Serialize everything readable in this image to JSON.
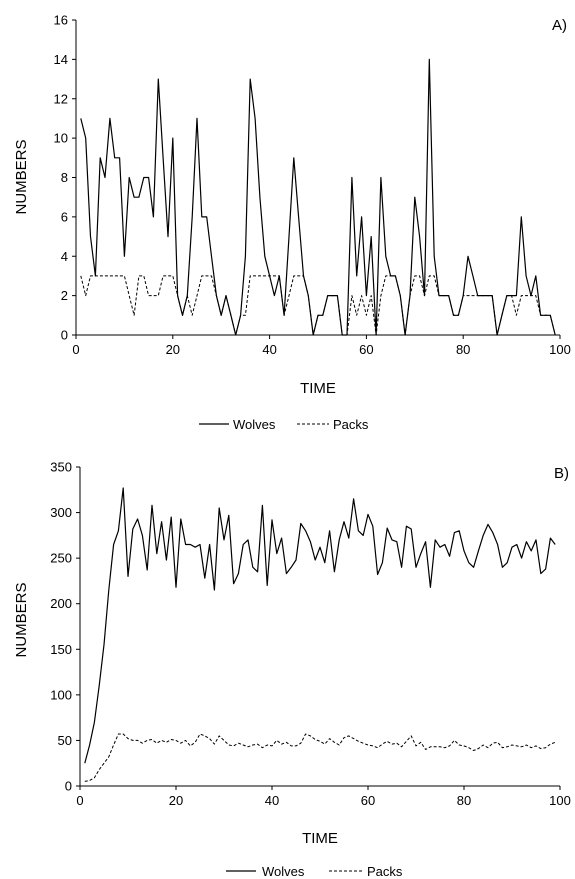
{
  "chart_data": [
    {
      "type": "line",
      "panel_label": "A)",
      "xlabel": "TIME",
      "ylabel": "NUMBERS",
      "xlim": [
        0,
        100
      ],
      "ylim": [
        0,
        16
      ],
      "xticks": [
        0,
        20,
        40,
        60,
        80,
        100
      ],
      "yticks": [
        0,
        2,
        4,
        6,
        8,
        10,
        12,
        14,
        16
      ],
      "grid": false,
      "legend": "bottom",
      "series": [
        {
          "name": "Wolves",
          "style": "solid",
          "x": [
            1,
            2,
            3,
            4,
            5,
            6,
            7,
            8,
            9,
            10,
            11,
            12,
            13,
            14,
            15,
            16,
            17,
            18,
            19,
            20,
            21,
            22,
            23,
            24,
            25,
            26,
            27,
            28,
            29,
            30,
            31,
            32,
            33,
            34,
            35,
            36,
            37,
            38,
            39,
            40,
            41,
            42,
            43,
            44,
            45,
            46,
            47,
            48,
            49,
            50,
            51,
            52,
            53,
            54,
            55,
            56,
            57,
            58,
            59,
            60,
            61,
            62,
            63,
            64,
            65,
            66,
            67,
            68,
            69,
            70,
            71,
            72,
            73,
            74,
            75,
            76,
            77,
            78,
            79,
            80,
            81,
            82,
            83,
            84,
            85,
            86,
            87,
            88,
            89,
            90,
            91,
            92,
            93,
            94,
            95,
            96,
            97,
            98,
            99
          ],
          "values": [
            11,
            10,
            5,
            3,
            9,
            8,
            11,
            9,
            9,
            4,
            8,
            7,
            7,
            8,
            8,
            6,
            13,
            9,
            5,
            10,
            2,
            1,
            2,
            6,
            11,
            6,
            6,
            4,
            2,
            1,
            2,
            1,
            0,
            1,
            4,
            13,
            11,
            7,
            4,
            3,
            2,
            3,
            1,
            5,
            9,
            6,
            3,
            2,
            0,
            1,
            1,
            2,
            2,
            2,
            0,
            0,
            8,
            3,
            6,
            2,
            5,
            0,
            8,
            4,
            3,
            3,
            2,
            0,
            2,
            7,
            5,
            2,
            14,
            4,
            2,
            2,
            2,
            1,
            1,
            2,
            4,
            3,
            2,
            2,
            2,
            2,
            0,
            1,
            2,
            2,
            2,
            6,
            3,
            2,
            3,
            1,
            1,
            1,
            0
          ]
        },
        {
          "name": "Packs",
          "style": "dashed",
          "x": [
            1,
            2,
            3,
            4,
            5,
            6,
            7,
            8,
            9,
            10,
            11,
            12,
            13,
            14,
            15,
            16,
            17,
            18,
            19,
            20,
            21,
            22,
            23,
            24,
            25,
            26,
            27,
            28,
            29,
            30,
            31,
            32,
            33,
            34,
            35,
            36,
            37,
            38,
            39,
            40,
            41,
            42,
            43,
            44,
            45,
            46,
            47,
            48,
            49,
            50,
            51,
            52,
            53,
            54,
            55,
            56,
            57,
            58,
            59,
            60,
            61,
            62,
            63,
            64,
            65,
            66,
            67,
            68,
            69,
            70,
            71,
            72,
            73,
            74,
            75,
            76,
            77,
            78,
            79,
            80,
            81,
            82,
            83,
            84,
            85,
            86,
            87,
            88,
            89,
            90,
            91,
            92,
            93,
            94,
            95,
            96,
            97,
            98,
            99
          ],
          "values": [
            3,
            2,
            3,
            3,
            3,
            3,
            3,
            3,
            3,
            3,
            2,
            1,
            3,
            3,
            2,
            2,
            2,
            3,
            3,
            3,
            2,
            1,
            2,
            1,
            2,
            3,
            3,
            3,
            2,
            1,
            2,
            1,
            0,
            1,
            1,
            3,
            3,
            3,
            3,
            3,
            3,
            3,
            1,
            2,
            3,
            3,
            3,
            2,
            0,
            1,
            1,
            2,
            2,
            2,
            0,
            0,
            2,
            1,
            2,
            1,
            2,
            0,
            2,
            3,
            3,
            3,
            2,
            0,
            2,
            3,
            3,
            2,
            3,
            3,
            2,
            2,
            2,
            1,
            1,
            2,
            2,
            2,
            2,
            2,
            2,
            2,
            0,
            1,
            2,
            2,
            1,
            2,
            2,
            2,
            2,
            1,
            1,
            1,
            0
          ]
        }
      ]
    },
    {
      "type": "line",
      "panel_label": "B)",
      "xlabel": "TIME",
      "ylabel": "NUMBERS",
      "xlim": [
        0,
        100
      ],
      "ylim": [
        0,
        350
      ],
      "xticks": [
        0,
        20,
        40,
        60,
        80,
        100
      ],
      "yticks": [
        0,
        50,
        100,
        150,
        200,
        250,
        300,
        350
      ],
      "grid": false,
      "legend": "bottom",
      "series": [
        {
          "name": "Wolves",
          "style": "solid",
          "x": [
            1,
            2,
            3,
            4,
            5,
            6,
            7,
            8,
            9,
            10,
            11,
            12,
            13,
            14,
            15,
            16,
            17,
            18,
            19,
            20,
            21,
            22,
            23,
            24,
            25,
            26,
            27,
            28,
            29,
            30,
            31,
            32,
            33,
            34,
            35,
            36,
            37,
            38,
            39,
            40,
            41,
            42,
            43,
            44,
            45,
            46,
            47,
            48,
            49,
            50,
            51,
            52,
            53,
            54,
            55,
            56,
            57,
            58,
            59,
            60,
            61,
            62,
            63,
            64,
            65,
            66,
            67,
            68,
            69,
            70,
            71,
            72,
            73,
            74,
            75,
            76,
            77,
            78,
            79,
            80,
            81,
            82,
            83,
            84,
            85,
            86,
            87,
            88,
            89,
            90,
            91,
            92,
            93,
            94,
            95,
            96,
            97,
            98,
            99
          ],
          "values": [
            25,
            45,
            70,
            110,
            155,
            215,
            265,
            280,
            327,
            230,
            282,
            293,
            275,
            237,
            308,
            255,
            290,
            248,
            295,
            218,
            293,
            265,
            265,
            262,
            265,
            228,
            265,
            215,
            305,
            270,
            297,
            222,
            233,
            265,
            270,
            240,
            235,
            308,
            220,
            292,
            255,
            272,
            233,
            240,
            248,
            288,
            280,
            268,
            248,
            262,
            245,
            280,
            235,
            270,
            290,
            272,
            315,
            280,
            275,
            298,
            285,
            232,
            245,
            283,
            270,
            268,
            240,
            285,
            282,
            240,
            255,
            268,
            218,
            270,
            262,
            265,
            252,
            278,
            280,
            258,
            245,
            240,
            258,
            275,
            287,
            278,
            265,
            240,
            245,
            262,
            265,
            250,
            268,
            258,
            270,
            233,
            238,
            272,
            265
          ]
        },
        {
          "name": "Packs",
          "style": "dashed",
          "x": [
            1,
            2,
            3,
            4,
            5,
            6,
            7,
            8,
            9,
            10,
            11,
            12,
            13,
            14,
            15,
            16,
            17,
            18,
            19,
            20,
            21,
            22,
            23,
            24,
            25,
            26,
            27,
            28,
            29,
            30,
            31,
            32,
            33,
            34,
            35,
            36,
            37,
            38,
            39,
            40,
            41,
            42,
            43,
            44,
            45,
            46,
            47,
            48,
            49,
            50,
            51,
            52,
            53,
            54,
            55,
            56,
            57,
            58,
            59,
            60,
            61,
            62,
            63,
            64,
            65,
            66,
            67,
            68,
            69,
            70,
            71,
            72,
            73,
            74,
            75,
            76,
            77,
            78,
            79,
            80,
            81,
            82,
            83,
            84,
            85,
            86,
            87,
            88,
            89,
            90,
            91,
            92,
            93,
            94,
            95,
            96,
            97,
            98,
            99
          ],
          "values": [
            5,
            6,
            9,
            18,
            25,
            32,
            45,
            57,
            57,
            52,
            50,
            50,
            47,
            50,
            51,
            47,
            50,
            48,
            51,
            50,
            47,
            50,
            44,
            48,
            57,
            55,
            52,
            46,
            55,
            50,
            45,
            44,
            47,
            45,
            43,
            45,
            46,
            42,
            45,
            44,
            50,
            46,
            48,
            44,
            44,
            47,
            57,
            55,
            51,
            49,
            46,
            52,
            48,
            45,
            53,
            55,
            52,
            49,
            47,
            45,
            44,
            42,
            46,
            49,
            46,
            47,
            43,
            49,
            55,
            44,
            48,
            40,
            43,
            43,
            43,
            42,
            44,
            50,
            45,
            44,
            42,
            39,
            41,
            45,
            42,
            47,
            48,
            42,
            43,
            45,
            44,
            43,
            45,
            42,
            44,
            41,
            42,
            46,
            48
          ]
        }
      ]
    }
  ]
}
